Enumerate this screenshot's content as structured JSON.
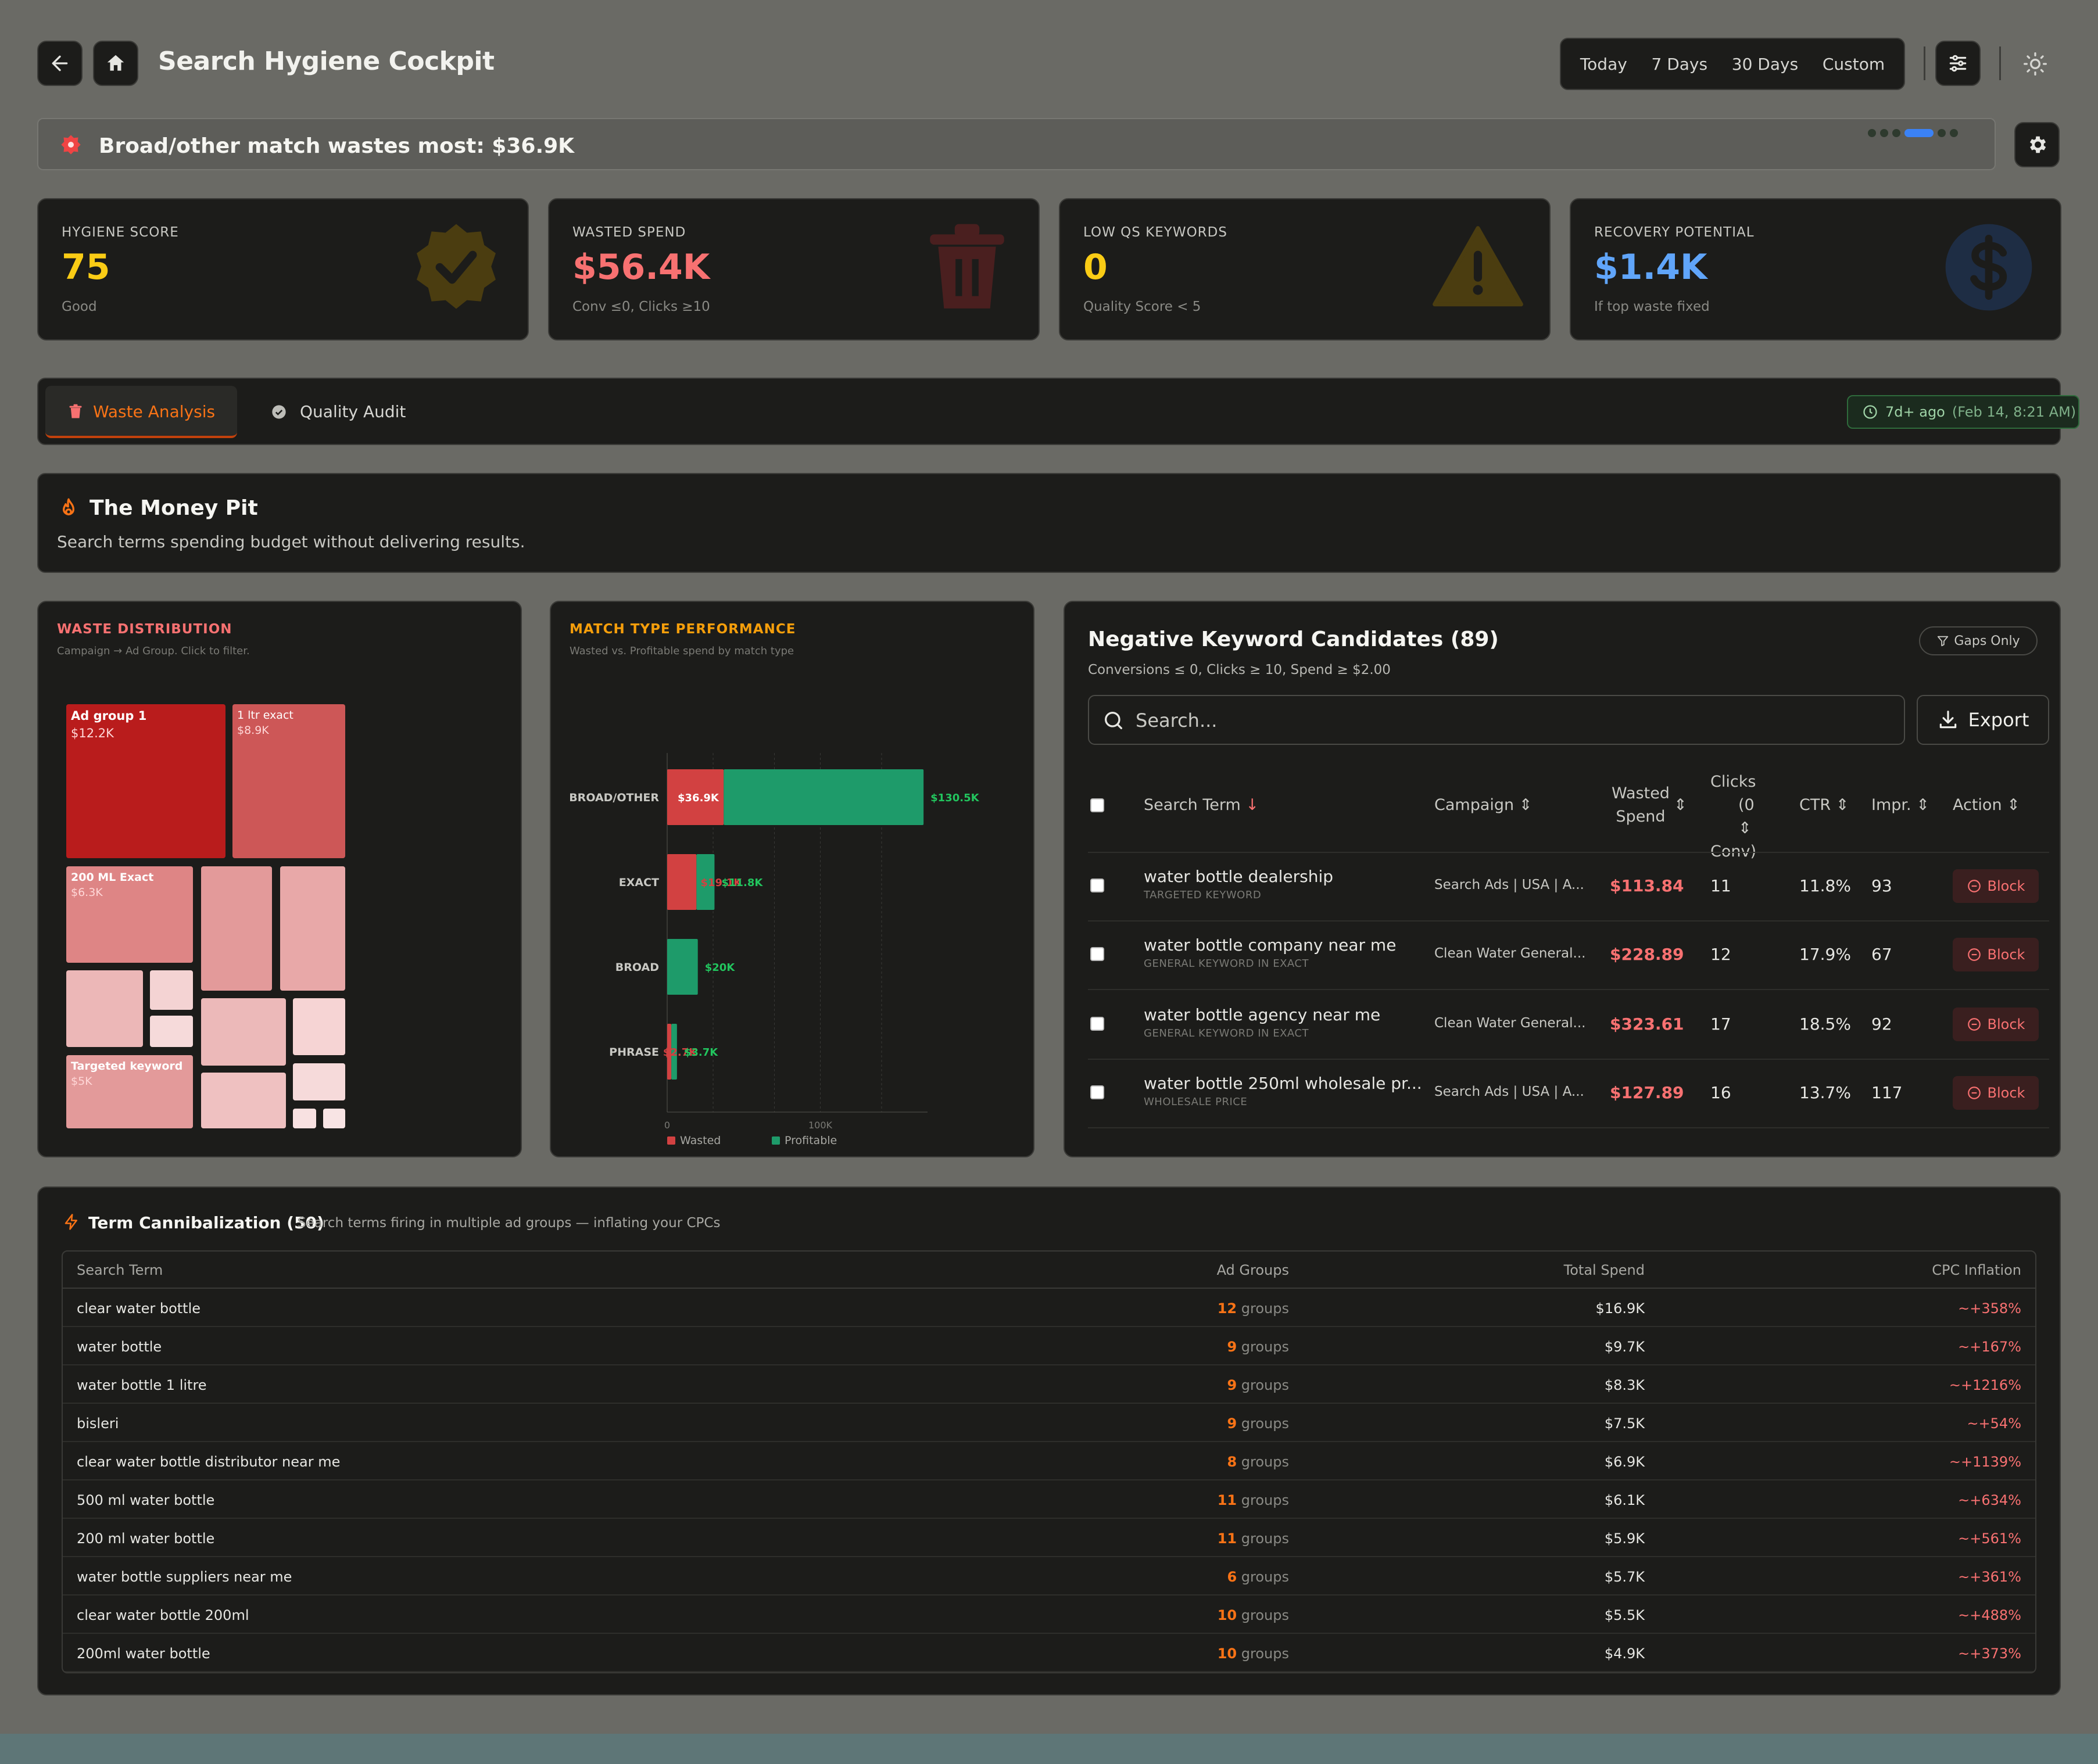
{
  "header": {
    "title": "Search Hygiene Cockpit",
    "ranges": [
      "Today",
      "7 Days",
      "30 Days",
      "Custom"
    ]
  },
  "alert": {
    "text": "Broad/other match wastes most: $36.9K"
  },
  "kpis": [
    {
      "label": "HYGIENE SCORE",
      "value": "75",
      "sub": "Good",
      "color": "#facc15"
    },
    {
      "label": "WASTED SPEND",
      "value": "$56.4K",
      "sub": "Conv ≤0, Clicks ≥10",
      "color": "#f87171"
    },
    {
      "label": "LOW QS KEYWORDS",
      "value": "0",
      "sub": "Quality Score < 5",
      "color": "#facc15"
    },
    {
      "label": "RECOVERY POTENTIAL",
      "value": "$1.4K",
      "sub": "If top waste fixed",
      "color": "#60a5fa"
    }
  ],
  "tabs": {
    "active": "Waste Analysis",
    "other": "Quality Audit",
    "updated": "7d+ ago",
    "updated_ts": "(Feb 14, 8:21 AM)"
  },
  "money_pit": {
    "title": "The Money Pit",
    "subtitle": "Search terms spending budget without delivering results."
  },
  "waste_distribution": {
    "title": "WASTE DISTRIBUTION",
    "subtitle": "Campaign → Ad Group. Click to filter.",
    "tiles": [
      {
        "name": "Ad group 1",
        "value": "$12.2K"
      },
      {
        "name": "1 ltr exact",
        "value": "$8.9K"
      },
      {
        "name": "200 ML Exact",
        "value": "$6.3K"
      },
      {
        "name": "Targeted keyword",
        "value": "$5K"
      }
    ]
  },
  "chart_data": {
    "type": "bar",
    "title": "MATCH TYPE PERFORMANCE",
    "subtitle": "Wasted vs. Profitable spend by match type",
    "orientation": "horizontal",
    "stacked": true,
    "categories": [
      "BROAD/OTHER",
      "EXACT",
      "BROAD",
      "PHRASE"
    ],
    "series": [
      {
        "name": "Wasted",
        "values": [
          36.9,
          19.1,
          0,
          2.7
        ],
        "labels": [
          "$36.9K",
          "$19.1K",
          "",
          "$2.7K"
        ],
        "color": "#d24141"
      },
      {
        "name": "Profitable",
        "values": [
          130.5,
          11.8,
          20,
          3.7
        ],
        "labels": [
          "$130.5K",
          "$11.8K",
          "$20K",
          "$3.7K"
        ],
        "color": "#1e9b6a"
      }
    ],
    "xlim": [
      0,
      170
    ],
    "xticks": [
      {
        "value": 0,
        "label": "0"
      },
      {
        "value": 100,
        "label": "100K"
      }
    ],
    "legend": "bottom-left"
  },
  "negatives": {
    "title": "Negative Keyword Candidates (89)",
    "criteria": "Conversions ≤ 0, Clicks ≥ 10, Spend ≥ $2.00",
    "gaps_label": "Gaps Only",
    "search_placeholder": "Search...",
    "export_label": "Export",
    "columns": {
      "term": "Search Term",
      "campaign": "Campaign",
      "wasted1": "Wasted",
      "wasted2": "Spend",
      "clicks1": "Clicks",
      "clicks2": "(0",
      "clicks3": "Conv)",
      "ctr": "CTR",
      "impr": "Impr.",
      "action": "Action"
    },
    "rows": [
      {
        "term": "water bottle dealership",
        "tag": "TARGETED KEYWORD",
        "campaign": "Search Ads | USA | A...",
        "wasted": "$113.84",
        "clicks": "11",
        "ctr": "11.8%",
        "impr": "93",
        "action": "Block"
      },
      {
        "term": "water bottle company near me",
        "tag": "GENERAL KEYWORD IN EXACT",
        "campaign": "Clean Water General...",
        "wasted": "$228.89",
        "clicks": "12",
        "ctr": "17.9%",
        "impr": "67",
        "action": "Block"
      },
      {
        "term": "water bottle agency near me",
        "tag": "GENERAL KEYWORD IN EXACT",
        "campaign": "Clean Water General...",
        "wasted": "$323.61",
        "clicks": "17",
        "ctr": "18.5%",
        "impr": "92",
        "action": "Block"
      },
      {
        "term": "water bottle 250ml wholesale pr...",
        "tag": "WHOLESALE PRICE",
        "campaign": "Search Ads | USA | A...",
        "wasted": "$127.89",
        "clicks": "16",
        "ctr": "13.7%",
        "impr": "117",
        "action": "Block"
      }
    ]
  },
  "cannibalization": {
    "title": "Term Cannibalization (50)",
    "subtitle": "Search terms firing in multiple ad groups — inflating your CPCs",
    "columns": [
      "Search Term",
      "Ad Groups",
      "Total Spend",
      "CPC Inflation"
    ],
    "groups_word": "groups",
    "rows": [
      {
        "term": "clear water bottle",
        "groups": "12",
        "spend": "$16.9K",
        "cpc": "~+358%"
      },
      {
        "term": "water bottle",
        "groups": "9",
        "spend": "$9.7K",
        "cpc": "~+167%"
      },
      {
        "term": "water bottle 1 litre",
        "groups": "9",
        "spend": "$8.3K",
        "cpc": "~+1216%"
      },
      {
        "term": "bisleri",
        "groups": "9",
        "spend": "$7.5K",
        "cpc": "~+54%"
      },
      {
        "term": "clear water bottle distributor near me",
        "groups": "8",
        "spend": "$6.9K",
        "cpc": "~+1139%"
      },
      {
        "term": "500 ml water bottle",
        "groups": "11",
        "spend": "$6.1K",
        "cpc": "~+634%"
      },
      {
        "term": "200 ml water bottle",
        "groups": "11",
        "spend": "$5.9K",
        "cpc": "~+561%"
      },
      {
        "term": "water bottle suppliers near me",
        "groups": "6",
        "spend": "$5.7K",
        "cpc": "~+361%"
      },
      {
        "term": "clear water bottle 200ml",
        "groups": "10",
        "spend": "$5.5K",
        "cpc": "~+488%"
      },
      {
        "term": "200ml water bottle",
        "groups": "10",
        "spend": "$4.9K",
        "cpc": "~+373%"
      }
    ]
  }
}
